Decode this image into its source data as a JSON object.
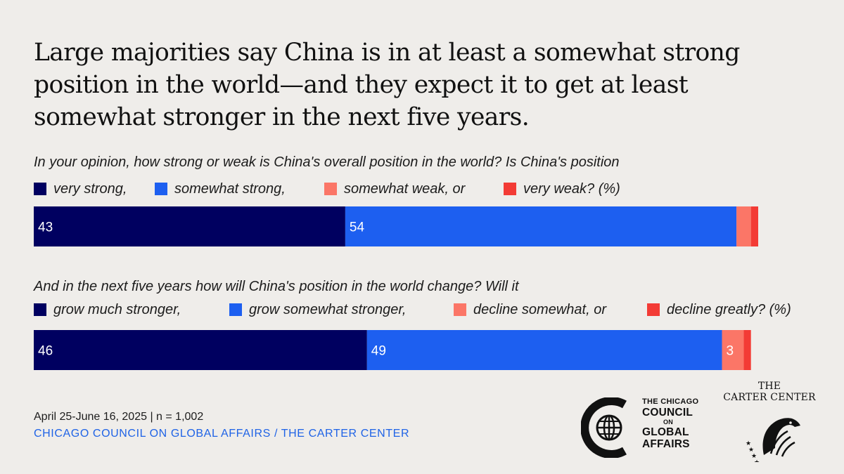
{
  "title": "Large majorities say China is in at least a somewhat strong position in the world—and they expect it to get at least somewhat stronger in the next five years.",
  "colors": {
    "series1": "#000060",
    "series2": "#1d5ff0",
    "series3": "#fb7667",
    "series4": "#f33b35"
  },
  "chart_data": [
    {
      "type": "bar",
      "orientation": "horizontal-stacked",
      "title": "In your opinion, how strong or weak is China's overall position in the world? Is China's position",
      "categories": [
        ""
      ],
      "xlim": [
        0,
        100
      ],
      "grid": false,
      "legend_position": "top",
      "series": [
        {
          "name": "very strong,",
          "values": [
            43
          ],
          "label": "43"
        },
        {
          "name": "somewhat strong,",
          "values": [
            54
          ],
          "label": "54"
        },
        {
          "name": "somewhat weak, or",
          "values": [
            2
          ],
          "label": ""
        },
        {
          "name": "very weak? (%)",
          "values": [
            1
          ],
          "label": ""
        }
      ]
    },
    {
      "type": "bar",
      "orientation": "horizontal-stacked",
      "title": "And in the next five years how will China's position in the world change? Will it",
      "categories": [
        ""
      ],
      "xlim": [
        0,
        100
      ],
      "grid": false,
      "legend_position": "top",
      "series": [
        {
          "name": "grow much stronger,",
          "values": [
            46
          ],
          "label": "46"
        },
        {
          "name": "grow somewhat stronger,",
          "values": [
            49
          ],
          "label": "49"
        },
        {
          "name": "decline somewhat, or",
          "values": [
            3
          ],
          "label": "3"
        },
        {
          "name": "decline greatly? (%)",
          "values": [
            1
          ],
          "label": ""
        }
      ]
    }
  ],
  "footnote": "April 25-June 16, 2025 | n = 1,002",
  "source": "CHICAGO COUNCIL ON GLOBAL AFFAIRS / THE CARTER CENTER",
  "logos": {
    "chicago_council": {
      "line1": "THE CHICAGO",
      "line2": "COUNCIL",
      "line3": "ON",
      "line4": "GLOBAL",
      "line5": "AFFAIRS"
    },
    "carter_center": {
      "line1": "THE",
      "line2": "CARTER CENTER"
    }
  }
}
